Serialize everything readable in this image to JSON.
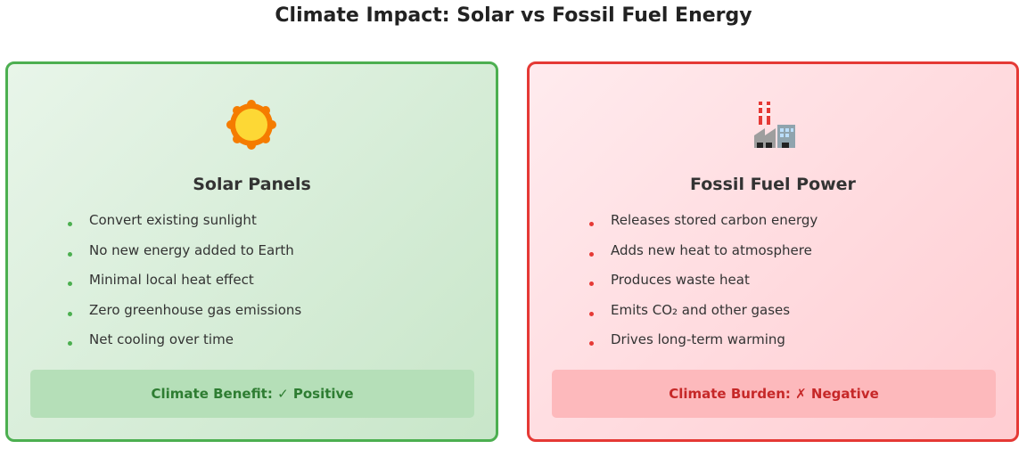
{
  "header": {
    "title": "Climate Impact: Solar vs Fossil Fuel Energy"
  },
  "cards": [
    {
      "title": "Solar Panels",
      "items": [
        "Convert existing sunlight",
        "No new energy added to Earth",
        "Minimal local heat effect",
        "Zero greenhouse gas emissions",
        "Net cooling over time"
      ],
      "footer": "Climate Benefit: ✓ Positive"
    },
    {
      "title": "Fossil Fuel Power",
      "items": [
        "Releases stored carbon energy",
        "Adds new heat to atmosphere",
        "Produces waste heat",
        "Emits CO₂ and other gases",
        "Drives long-term warming"
      ],
      "footer": "Climate Burden: ✗ Negative"
    }
  ]
}
